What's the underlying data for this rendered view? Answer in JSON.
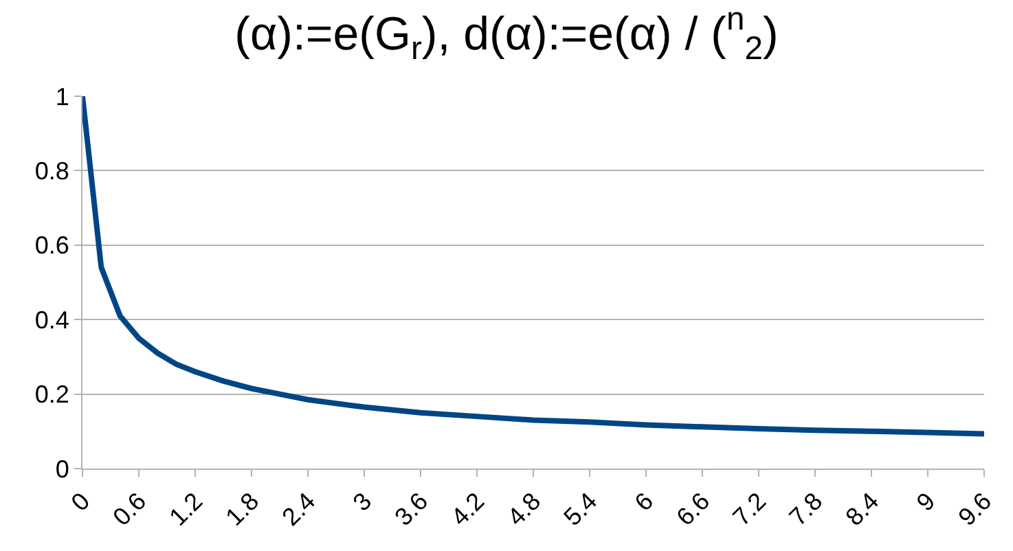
{
  "chart_data": {
    "type": "line",
    "title": "(α):=e(G$_{r}$), d(α):=e(α) / ($^{n}$$_{2}$)",
    "x": [
      0,
      0.2,
      0.4,
      0.6,
      0.8,
      1.0,
      1.2,
      1.5,
      1.8,
      2.1,
      2.4,
      3.0,
      3.6,
      4.2,
      4.8,
      5.4,
      6.0,
      6.6,
      7.2,
      7.8,
      8.4,
      9.0,
      9.6
    ],
    "series": [
      {
        "color": "#004586",
        "values": [
          1,
          0.54,
          0.41,
          0.35,
          0.31,
          0.28,
          0.26,
          0.235,
          0.215,
          0.2,
          0.185,
          0.165,
          0.15,
          0.14,
          0.13,
          0.125,
          0.117,
          0.112,
          0.107,
          0.103,
          0.1,
          0.097,
          0.093
        ]
      }
    ],
    "xlim": [
      0,
      9.6
    ],
    "xticks": [
      0,
      0.6,
      1.2,
      1.8,
      2.4,
      3,
      3.6,
      4.2,
      4.8,
      5.4,
      6,
      6.6,
      7.2,
      7.8,
      8.4,
      9,
      9.6
    ],
    "ylim": [
      0,
      1
    ],
    "yticks": [
      0,
      0.2,
      0.4,
      0.6,
      0.8,
      1
    ],
    "grid": "y",
    "marker": "none",
    "line_style": "solid"
  }
}
